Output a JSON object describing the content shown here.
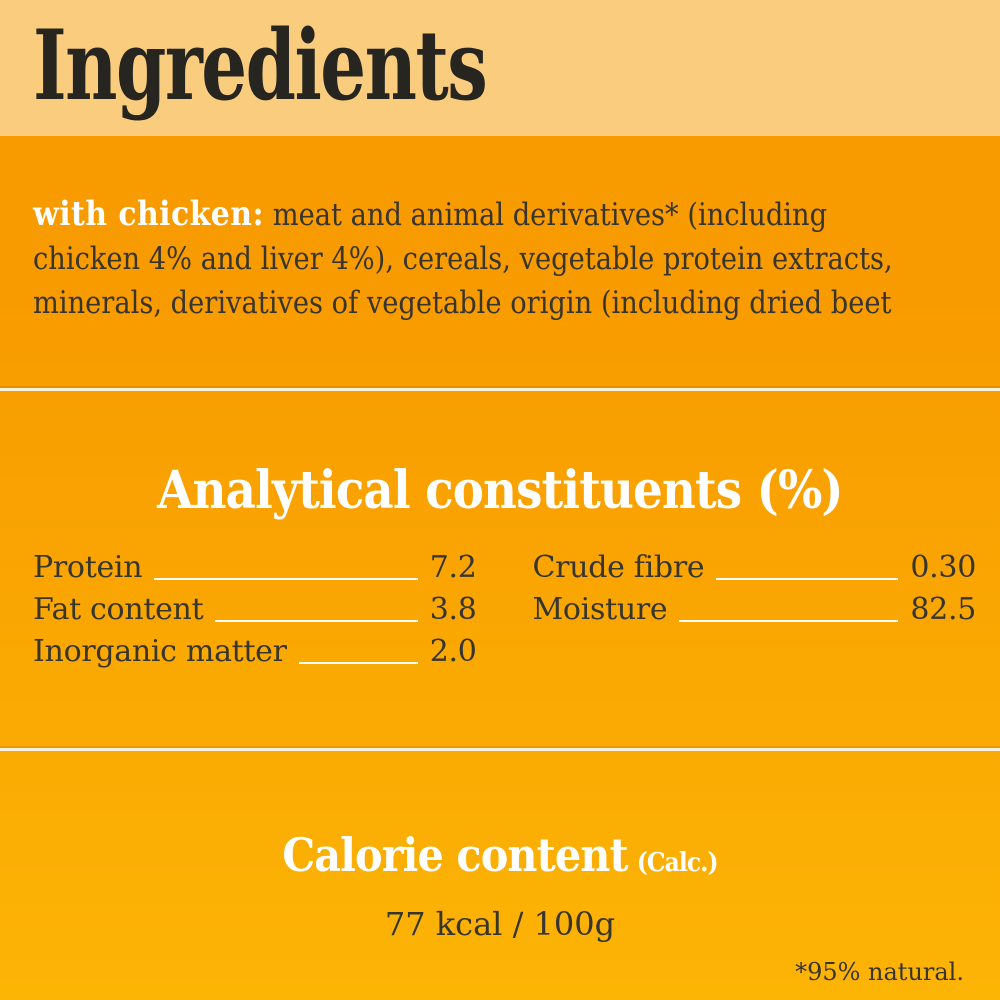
{
  "colors": {
    "band_bg": "#FACC7E",
    "bg_top": "#F89B00",
    "bg_bottom": "#FCB405",
    "title_text": "#262520",
    "body_text": "#38352C",
    "heading_white": "#FFFFFF",
    "divider_line": "#F8F1DC",
    "leader_line": "#FFFEF6"
  },
  "header": {
    "title": "Ingredients"
  },
  "ingredients": {
    "variant_label": "with chicken:",
    "lines": [
      "meat and animal derivatives* (including",
      "chicken 4% and liver 4%), cereals, vegetable protein extracts,",
      "minerals, derivatives of vegetable origin (including dried beet"
    ]
  },
  "analytical": {
    "heading": "Analytical constituents (%)",
    "columns": [
      {
        "rows": [
          {
            "label": "Protein",
            "value": "7.2"
          },
          {
            "label": "Fat content",
            "value": "3.8"
          },
          {
            "label": "Inorganic matter",
            "value": "2.0"
          }
        ]
      },
      {
        "rows": [
          {
            "label": "Crude fibre",
            "value": "0.30"
          },
          {
            "label": "Moisture",
            "value": "82.5"
          }
        ]
      }
    ]
  },
  "calorie": {
    "heading": "Calorie content",
    "method_note": "(Calc.)",
    "value": "77 kcal / 100g"
  },
  "footnote": "*95% natural."
}
